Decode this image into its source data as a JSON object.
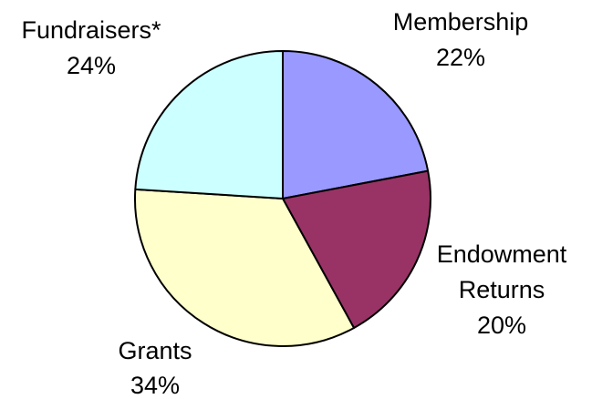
{
  "chart_data": {
    "type": "pie",
    "slices": [
      {
        "label": "Membership",
        "value": 22,
        "value_label": "22%",
        "color": "#9999FF"
      },
      {
        "label": "Endowment Returns",
        "label_lines": [
          "Endowment",
          "Returns"
        ],
        "value": 20,
        "value_label": "20%",
        "color": "#993366"
      },
      {
        "label": "Grants",
        "value": 34,
        "value_label": "34%",
        "color": "#FFFFCC"
      },
      {
        "label": "Fundraisers*",
        "value": 24,
        "value_label": "24%",
        "color": "#CCFFFF"
      }
    ],
    "start_angle": "12 o'clock",
    "direction": "clockwise",
    "legend": "none",
    "title": ""
  }
}
